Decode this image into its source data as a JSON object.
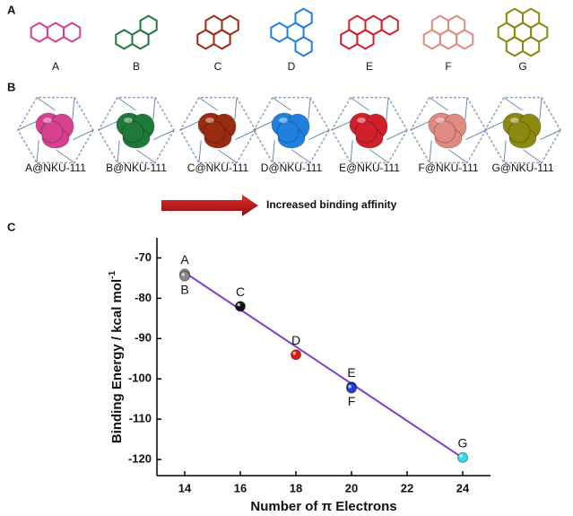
{
  "panel_labels": [
    "A",
    "B",
    "C"
  ],
  "molecules": [
    {
      "label": "A",
      "complex": "A@NKU-111",
      "color": "#d6408f"
    },
    {
      "label": "B",
      "complex": "B@NKU-111",
      "color": "#1e7a3a"
    },
    {
      "label": "C",
      "complex": "C@NKU-111",
      "color": "#9a2a10"
    },
    {
      "label": "D",
      "complex": "D@NKU-111",
      "color": "#2080e0"
    },
    {
      "label": "E",
      "complex": "E@NKU-111",
      "color": "#d0202a"
    },
    {
      "label": "F",
      "complex": "F@NKU-111",
      "color": "#e08a80"
    },
    {
      "label": "G",
      "complex": "G@NKU-111",
      "color": "#8a8a10"
    }
  ],
  "arrow_text": "Increased binding affinity",
  "chart_data": {
    "type": "scatter",
    "x": [
      14,
      14,
      16,
      18,
      20,
      20,
      24
    ],
    "values": [
      -74,
      -74.5,
      -82,
      -94,
      -102,
      -102.3,
      -119.5
    ],
    "point_labels": [
      "A",
      "B",
      "C",
      "D",
      "E",
      "F",
      "G"
    ],
    "label_positions": [
      "above",
      "below",
      "above",
      "above",
      "above",
      "below",
      "above"
    ],
    "colors": [
      "#a08088",
      "#888888",
      "#111111",
      "#e01818",
      "#2040d0",
      "#2040d0",
      "#30d8f0"
    ],
    "fit": {
      "x": [
        14,
        24
      ],
      "y": [
        -73.6,
        -119.6
      ],
      "color": "#7b3fd0"
    },
    "xlim": [
      13,
      25
    ],
    "ylim": [
      -124,
      -65
    ],
    "xticks": [
      14,
      16,
      18,
      20,
      22,
      24
    ],
    "yticks": [
      -70,
      -80,
      -90,
      -100,
      -110,
      -120
    ],
    "x_label": "Number of π Electrons",
    "y_label": "Binding Energy / kcal mol",
    "y_label_superscript": "-1"
  }
}
